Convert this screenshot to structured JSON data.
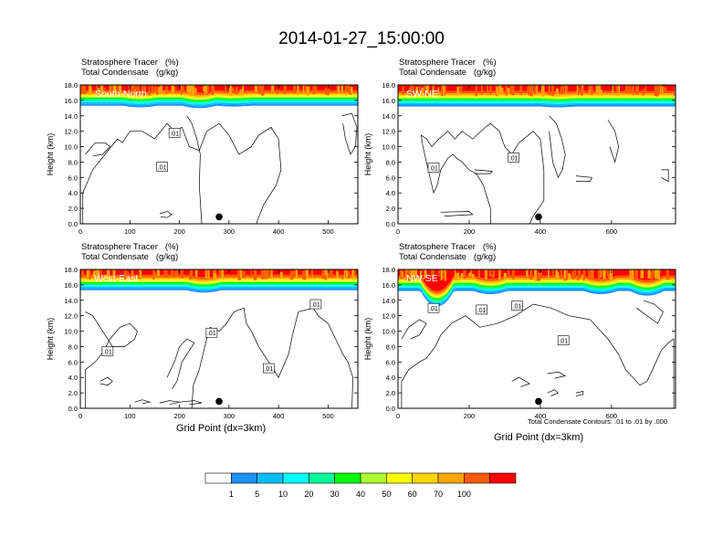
{
  "title": "2014-01-27_15:00:00",
  "chart_data": [
    {
      "type": "heatmap",
      "name": "South-North",
      "subtitle_1": "Stratosphere Tracer   (%)",
      "subtitle_2": "Total Condensate   (g/kg)",
      "ylabel": "Height (km)",
      "xlabel": "",
      "xlim": [
        0,
        560
      ],
      "ylim": [
        0,
        18
      ],
      "xticks": [
        "0",
        "100",
        "200",
        "300",
        "400",
        "500"
      ],
      "yticks": [
        "0.0",
        "2.0",
        "4.0",
        "6.0",
        "8.0",
        "10.0",
        "12.0",
        "14.0",
        "16.0",
        "18.0"
      ],
      "tracer_base_km": 15.3,
      "contour_label": ".01",
      "marker_x": 280
    },
    {
      "type": "heatmap",
      "name": "SW-NE",
      "subtitle_1": "Stratosphere Tracer   (%)",
      "subtitle_2": "Total Condensate   (g/kg)",
      "ylabel": "Height (km)",
      "xlabel": "",
      "xlim": [
        0,
        780
      ],
      "ylim": [
        0,
        18
      ],
      "xticks": [
        "0",
        "200",
        "400",
        "600"
      ],
      "yticks": [
        "0.0",
        "2.0",
        "4.0",
        "6.0",
        "8.0",
        "10.0",
        "12.0",
        "14.0",
        "16.0",
        "18.0"
      ],
      "tracer_base_km": 15.2,
      "contour_label": ".01",
      "marker_x": 395
    },
    {
      "type": "heatmap",
      "name": "West-East",
      "subtitle_1": "Stratosphere Tracer   (%)",
      "subtitle_2": "Total Condensate   (g/kg)",
      "ylabel": "Height (km)",
      "xlabel": "Grid Point (dx=3km)",
      "xlim": [
        0,
        560
      ],
      "ylim": [
        0,
        18
      ],
      "xticks": [
        "0",
        "100",
        "200",
        "300",
        "400",
        "500"
      ],
      "yticks": [
        "0.0",
        "2.0",
        "4.0",
        "6.0",
        "8.0",
        "10.0",
        "12.0",
        "14.0",
        "16.0",
        "18.0"
      ],
      "tracer_base_km": 15.3,
      "contour_label": ".01",
      "marker_x": 280
    },
    {
      "type": "heatmap",
      "name": "NW-SE",
      "subtitle_1": "Stratosphere Tracer   (%)",
      "subtitle_2": "Total Condensate   (g/kg)",
      "ylabel": "Height (km)",
      "xlabel": "Grid Point (dx=3km)",
      "xlim": [
        0,
        780
      ],
      "ylim": [
        0,
        18
      ],
      "xticks": [
        "0",
        "200",
        "400",
        "600"
      ],
      "yticks": [
        "0.0",
        "2.0",
        "4.0",
        "6.0",
        "8.0",
        "10.0",
        "12.0",
        "14.0",
        "16.0",
        "18.0"
      ],
      "tracer_base_km": 15.2,
      "contour_label": ".01",
      "marker_x": 395,
      "footnote": "Total Condensate Contours: .01 to .01 by .000"
    }
  ],
  "colorbar": {
    "levels": [
      "1",
      "5",
      "10",
      "20",
      "30",
      "40",
      "50",
      "60",
      "70",
      "100"
    ],
    "colors": [
      "#ffffff",
      "#1e90ff",
      "#00bfff",
      "#00ffff",
      "#00fa9a",
      "#00ff00",
      "#adff2f",
      "#ffff00",
      "#ffd700",
      "#ffa500",
      "#ff5a00",
      "#ff0000"
    ]
  }
}
